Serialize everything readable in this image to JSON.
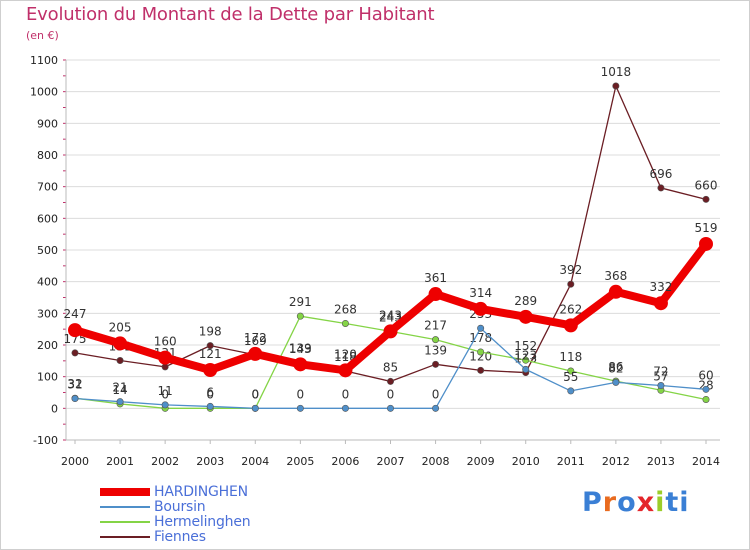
{
  "header": {
    "title": "Evolution du Montant de la Dette par Habitant",
    "unit": "(en €)"
  },
  "logo": {
    "text": "Proxiti",
    "colors": [
      "#3a7fd5",
      "#e96b1f",
      "#3a7fd5",
      "#e4262b",
      "#9ccd2a",
      "#3a7fd5",
      "#3a7fd5"
    ]
  },
  "chart_data": {
    "type": "line",
    "title": "Evolution du Montant de la Dette par Habitant",
    "subtitle": "(en €)",
    "xlabel": "",
    "ylabel": "",
    "x": [
      "2000",
      "2001",
      "2002",
      "2003",
      "2004",
      "2005",
      "2006",
      "2007",
      "2008",
      "2009",
      "2010",
      "2011",
      "2012",
      "2013",
      "2014"
    ],
    "ylim": [
      -100,
      1100
    ],
    "yticks": [
      -100,
      0,
      100,
      200,
      300,
      400,
      500,
      600,
      700,
      800,
      900,
      1000,
      1100
    ],
    "grid": "horizontal",
    "legend_position": "bottom-left",
    "series": [
      {
        "name": "HARDINGHEN",
        "color": "#ee0000",
        "values": [
          247,
          205,
          160,
          121,
          172,
          139,
          120,
          243,
          361,
          314,
          289,
          262,
          368,
          332,
          519
        ]
      },
      {
        "name": "Boursin",
        "color": "#4f8fc9",
        "values": [
          31,
          21,
          11,
          6,
          0,
          0,
          0,
          0,
          0,
          253,
          123,
          55,
          82,
          72,
          60
        ]
      },
      {
        "name": "Hermelinghen",
        "color": "#84d446",
        "values": [
          32,
          14,
          0,
          0,
          0,
          291,
          268,
          243,
          217,
          178,
          152,
          118,
          86,
          57,
          28
        ]
      },
      {
        "name": "Fiennes",
        "color": "#6b1e24",
        "values": [
          175,
          151,
          131,
          198,
          169,
          143,
          118,
          85,
          139,
          120,
          113,
          392,
          1018,
          696,
          660
        ]
      }
    ]
  }
}
